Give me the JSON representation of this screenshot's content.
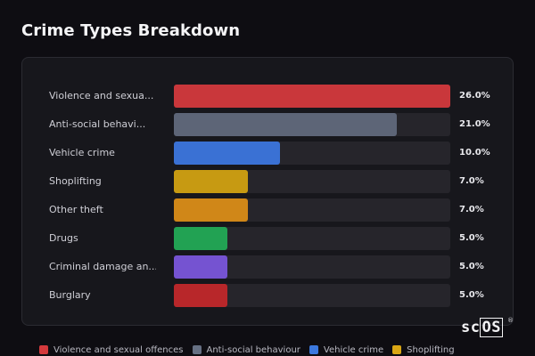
{
  "title": "Crime Types Breakdown",
  "brand": {
    "prefix": "sc",
    "highlight": "OS",
    "mark": "®"
  },
  "chart_data": {
    "type": "bar",
    "orientation": "horizontal",
    "categories": [
      "Violence and sexua...",
      "Anti-social behavi...",
      "Vehicle crime",
      "Shoplifting",
      "Other theft",
      "Drugs",
      "Criminal damage an...",
      "Burglary"
    ],
    "values": [
      26.0,
      21.0,
      10.0,
      7.0,
      7.0,
      5.0,
      5.0,
      5.0
    ],
    "value_labels": [
      "26.0%",
      "21.0%",
      "10.0%",
      "7.0%",
      "7.0%",
      "5.0%",
      "5.0%",
      "5.0%"
    ],
    "colors": [
      "#c9373b",
      "#5d6577",
      "#3a71d4",
      "#c79a12",
      "#d08718",
      "#22a253",
      "#7553d1",
      "#b8272a"
    ],
    "xlim": [
      0,
      26
    ],
    "unit": "%",
    "legend": {
      "placement": "bottom",
      "items": [
        {
          "name": "Violence and sexual offences",
          "color": "#d4393c"
        },
        {
          "name": "Anti-social behaviour",
          "color": "#667083"
        },
        {
          "name": "Vehicle crime",
          "color": "#3b78de"
        },
        {
          "name": "Shoplifting",
          "color": "#d9a614"
        }
      ]
    }
  }
}
